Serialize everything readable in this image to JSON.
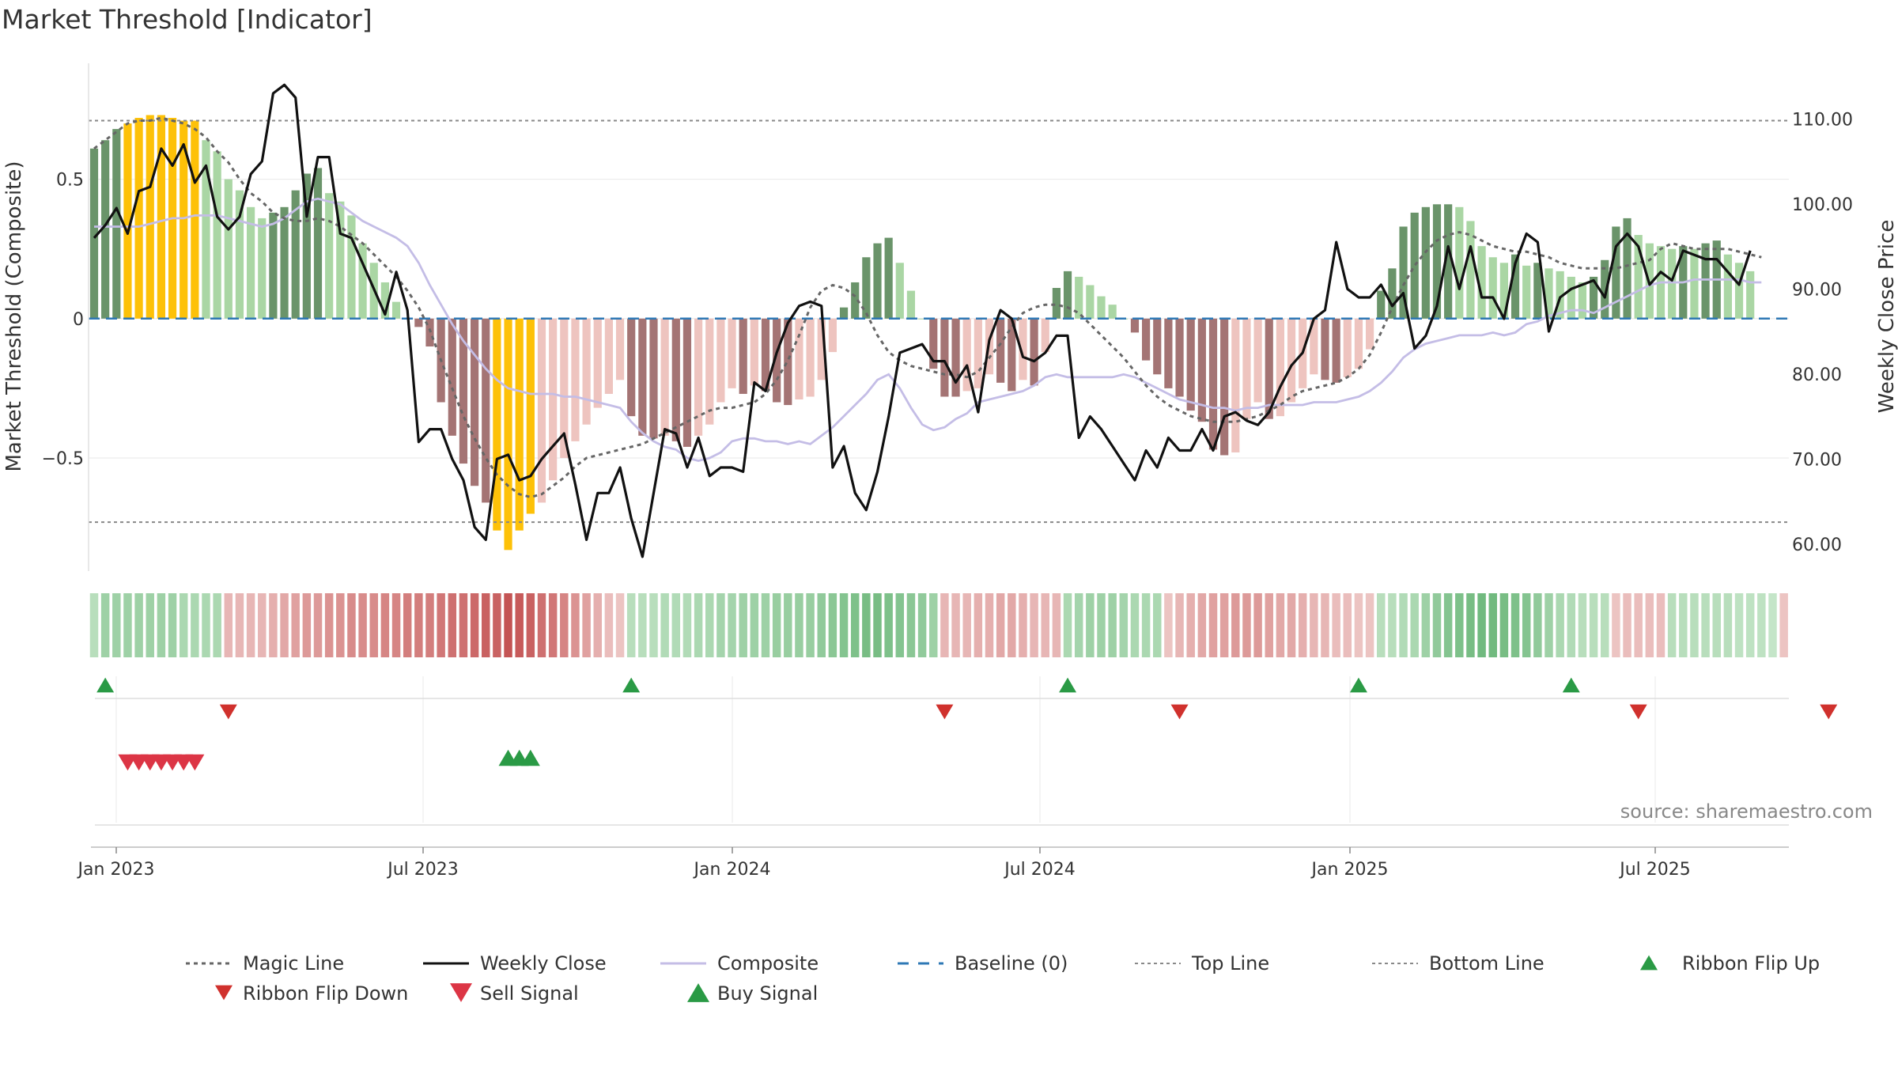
{
  "chart_data": {
    "type": "bar",
    "title": "Market Threshold [Indicator]",
    "ylabel": "Market Threshold (Composite)",
    "y2label": "Weekly Close Price",
    "ylim": [
      -0.9,
      0.93
    ],
    "y2lim": [
      57.0,
      117.0
    ],
    "source": "source: sharemaestro.com",
    "x_ticks": [
      "Jan 2023",
      "Jul 2023",
      "Jan 2024",
      "Jul 2024",
      "Jan 2025",
      "Jul 2025"
    ],
    "y_ticks": [
      {
        "value": 0.5,
        "label": "0.5"
      },
      {
        "value": 0,
        "label": "0"
      },
      {
        "value": -0.5,
        "label": "−0.5"
      }
    ],
    "y2_ticks": [
      {
        "value": 110,
        "label": "110.00"
      },
      {
        "value": 100,
        "label": "100.00"
      },
      {
        "value": 90,
        "label": "90.00"
      },
      {
        "value": 80,
        "label": "80.00"
      },
      {
        "value": 70,
        "label": "70.00"
      },
      {
        "value": 60,
        "label": "60.00"
      }
    ],
    "top_line": 0.71,
    "bottom_line": -0.73,
    "composite_bars": [
      0.61,
      0.64,
      0.68,
      0.7,
      0.72,
      0.73,
      0.73,
      0.72,
      0.71,
      0.71,
      0.64,
      0.6,
      0.5,
      0.46,
      0.4,
      0.36,
      0.38,
      0.4,
      0.46,
      0.52,
      0.54,
      0.45,
      0.42,
      0.37,
      0.27,
      0.2,
      0.13,
      0.06,
      0.0,
      -0.03,
      -0.1,
      -0.3,
      -0.42,
      -0.52,
      -0.6,
      -0.66,
      -0.76,
      -0.83,
      -0.76,
      -0.7,
      -0.66,
      -0.58,
      -0.5,
      -0.44,
      -0.38,
      -0.32,
      -0.27,
      -0.22,
      -0.35,
      -0.42,
      -0.43,
      -0.42,
      -0.44,
      -0.46,
      -0.42,
      -0.38,
      -0.3,
      -0.25,
      -0.27,
      -0.24,
      -0.26,
      -0.3,
      -0.31,
      -0.29,
      -0.28,
      -0.22,
      -0.12,
      0.04,
      0.13,
      0.22,
      0.27,
      0.29,
      0.2,
      0.1,
      0.0,
      -0.18,
      -0.28,
      -0.28,
      -0.26,
      -0.25,
      -0.2,
      -0.23,
      -0.26,
      -0.22,
      -0.24,
      -0.12,
      0.11,
      0.17,
      0.15,
      0.12,
      0.08,
      0.05,
      0.0,
      -0.05,
      -0.15,
      -0.2,
      -0.25,
      -0.28,
      -0.33,
      -0.37,
      -0.47,
      -0.49,
      -0.48,
      -0.36,
      -0.3,
      -0.36,
      -0.35,
      -0.3,
      -0.25,
      -0.2,
      -0.22,
      -0.23,
      -0.21,
      -0.18,
      -0.11,
      0.1,
      0.18,
      0.33,
      0.38,
      0.4,
      0.41,
      0.41,
      0.4,
      0.35,
      0.26,
      0.22,
      0.2,
      0.23,
      0.19,
      0.2,
      0.18,
      0.17,
      0.15,
      0.13,
      0.15,
      0.21,
      0.33,
      0.36,
      0.3,
      0.27,
      0.26,
      0.25,
      0.26,
      0.25,
      0.27,
      0.28,
      0.23,
      0.2,
      0.17
    ],
    "weekly_close": [
      96,
      97.5,
      99.5,
      96.5,
      101.5,
      102,
      106.5,
      104.5,
      107,
      102.5,
      104.5,
      98.5,
      97,
      98.5,
      103.5,
      105,
      113,
      114,
      112.5,
      98.5,
      105.5,
      105.5,
      96.5,
      96,
      93,
      90,
      87,
      92,
      87.5,
      72,
      73.5,
      73.5,
      70,
      67.5,
      62,
      60.5,
      70,
      70.5,
      67.5,
      68,
      70,
      71.5,
      73,
      67,
      60.5,
      66,
      66,
      69,
      63,
      58.5,
      66,
      73.5,
      73,
      69,
      72.5,
      68,
      69,
      69,
      68.5,
      79,
      78,
      82.5,
      86,
      88,
      88.5,
      88,
      69,
      71.5,
      66,
      64,
      68.5,
      75,
      82.5,
      83,
      83.5,
      81.5,
      81.5,
      79,
      81,
      75.5,
      84,
      87.5,
      86.5,
      82,
      81.5,
      82.5,
      84.5,
      84.5,
      72.5,
      75,
      73.5,
      71.5,
      69.5,
      67.5,
      71,
      69,
      72.5,
      71,
      71,
      73.5,
      71,
      75,
      75.5,
      74.5,
      74,
      75.5,
      78.5,
      81,
      82.5,
      86.5,
      87.5,
      95.5,
      90,
      89,
      89,
      90.5,
      88,
      89.5,
      83,
      84.5,
      88,
      95,
      90,
      95,
      89,
      89,
      86.5,
      93,
      96.5,
      95.5,
      85,
      89,
      90,
      90.5,
      91,
      89,
      95,
      96.5,
      95,
      90.5,
      92,
      91,
      94.5,
      94,
      93.5,
      93.5,
      92,
      90.5,
      94.5
    ],
    "magic_line": [
      0.61,
      0.64,
      0.67,
      0.7,
      0.71,
      0.71,
      0.72,
      0.71,
      0.7,
      0.68,
      0.65,
      0.6,
      0.56,
      0.5,
      0.45,
      0.42,
      0.38,
      0.36,
      0.35,
      0.35,
      0.36,
      0.35,
      0.33,
      0.3,
      0.27,
      0.23,
      0.19,
      0.15,
      0.1,
      0.04,
      -0.04,
      -0.15,
      -0.25,
      -0.35,
      -0.43,
      -0.5,
      -0.56,
      -0.6,
      -0.63,
      -0.64,
      -0.63,
      -0.6,
      -0.57,
      -0.53,
      -0.5,
      -0.49,
      -0.48,
      -0.47,
      -0.46,
      -0.45,
      -0.43,
      -0.41,
      -0.39,
      -0.37,
      -0.35,
      -0.33,
      -0.32,
      -0.32,
      -0.31,
      -0.3,
      -0.27,
      -0.22,
      -0.15,
      -0.06,
      0.04,
      0.1,
      0.12,
      0.11,
      0.08,
      0.02,
      -0.06,
      -0.12,
      -0.15,
      -0.17,
      -0.18,
      -0.19,
      -0.2,
      -0.2,
      -0.21,
      -0.19,
      -0.14,
      -0.09,
      -0.03,
      0.02,
      0.04,
      0.05,
      0.05,
      0.04,
      0.02,
      -0.02,
      -0.06,
      -0.1,
      -0.14,
      -0.19,
      -0.24,
      -0.28,
      -0.31,
      -0.33,
      -0.35,
      -0.36,
      -0.37,
      -0.37,
      -0.37,
      -0.36,
      -0.35,
      -0.33,
      -0.31,
      -0.28,
      -0.26,
      -0.25,
      -0.24,
      -0.23,
      -0.21,
      -0.18,
      -0.13,
      -0.05,
      0.04,
      0.12,
      0.19,
      0.24,
      0.28,
      0.3,
      0.31,
      0.3,
      0.28,
      0.26,
      0.25,
      0.24,
      0.24,
      0.23,
      0.22,
      0.2,
      0.19,
      0.18,
      0.18,
      0.18,
      0.18,
      0.19,
      0.2,
      0.21,
      0.25,
      0.27,
      0.26,
      0.25,
      0.25,
      0.25,
      0.25,
      0.24,
      0.23,
      0.22
    ],
    "composite_line": [
      0.33,
      0.33,
      0.33,
      0.33,
      0.33,
      0.34,
      0.35,
      0.36,
      0.36,
      0.37,
      0.37,
      0.37,
      0.36,
      0.35,
      0.34,
      0.33,
      0.34,
      0.36,
      0.39,
      0.42,
      0.43,
      0.42,
      0.41,
      0.38,
      0.35,
      0.33,
      0.31,
      0.29,
      0.26,
      0.2,
      0.12,
      0.05,
      -0.02,
      -0.08,
      -0.13,
      -0.18,
      -0.22,
      -0.25,
      -0.26,
      -0.27,
      -0.27,
      -0.27,
      -0.28,
      -0.28,
      -0.29,
      -0.3,
      -0.31,
      -0.32,
      -0.37,
      -0.41,
      -0.44,
      -0.46,
      -0.47,
      -0.5,
      -0.51,
      -0.5,
      -0.48,
      -0.44,
      -0.43,
      -0.43,
      -0.44,
      -0.44,
      -0.45,
      -0.44,
      -0.45,
      -0.42,
      -0.39,
      -0.35,
      -0.31,
      -0.27,
      -0.22,
      -0.2,
      -0.25,
      -0.32,
      -0.38,
      -0.4,
      -0.39,
      -0.36,
      -0.34,
      -0.3,
      -0.29,
      -0.28,
      -0.27,
      -0.26,
      -0.24,
      -0.21,
      -0.2,
      -0.21,
      -0.21,
      -0.21,
      -0.21,
      -0.21,
      -0.2,
      -0.21,
      -0.23,
      -0.25,
      -0.27,
      -0.29,
      -0.3,
      -0.31,
      -0.32,
      -0.32,
      -0.33,
      -0.32,
      -0.32,
      -0.31,
      -0.31,
      -0.31,
      -0.31,
      -0.3,
      -0.3,
      -0.3,
      -0.29,
      -0.28,
      -0.26,
      -0.23,
      -0.19,
      -0.14,
      -0.11,
      -0.09,
      -0.08,
      -0.07,
      -0.06,
      -0.06,
      -0.06,
      -0.05,
      -0.06,
      -0.05,
      -0.02,
      -0.01,
      0.01,
      0.02,
      0.03,
      0.03,
      0.02,
      0.04,
      0.06,
      0.08,
      0.1,
      0.12,
      0.13,
      0.13,
      0.13,
      0.14,
      0.14,
      0.14,
      0.14,
      0.14,
      0.13,
      0.13
    ],
    "ribbon_scores": [
      0.3,
      0.5,
      0.5,
      0.5,
      0.5,
      0.5,
      0.5,
      0.5,
      0.4,
      0.4,
      0.4,
      0.4,
      -0.3,
      -0.3,
      -0.3,
      -0.3,
      -0.35,
      -0.4,
      -0.45,
      -0.5,
      -0.5,
      -0.55,
      -0.55,
      -0.6,
      -0.6,
      -0.6,
      -0.65,
      -0.65,
      -0.7,
      -0.7,
      -0.7,
      -0.75,
      -0.8,
      -0.8,
      -0.85,
      -0.9,
      -0.9,
      -1.0,
      -0.95,
      -0.9,
      -0.8,
      -0.75,
      -0.65,
      -0.55,
      -0.45,
      -0.35,
      -0.25,
      -0.2,
      0.3,
      0.3,
      0.3,
      0.35,
      0.35,
      0.35,
      0.4,
      0.4,
      0.45,
      0.45,
      0.5,
      0.5,
      0.5,
      0.55,
      0.55,
      0.55,
      0.55,
      0.6,
      0.65,
      0.7,
      0.75,
      0.8,
      0.8,
      0.75,
      0.7,
      0.65,
      0.6,
      0.5,
      -0.3,
      -0.3,
      -0.3,
      -0.35,
      -0.35,
      -0.4,
      -0.4,
      -0.35,
      -0.3,
      -0.3,
      -0.3,
      0.4,
      0.45,
      0.5,
      0.5,
      0.5,
      0.45,
      0.4,
      0.4,
      0.4,
      -0.2,
      -0.3,
      -0.35,
      -0.4,
      -0.45,
      -0.45,
      -0.5,
      -0.5,
      -0.5,
      -0.45,
      -0.4,
      -0.4,
      -0.35,
      -0.3,
      -0.3,
      -0.25,
      -0.25,
      -0.2,
      -0.2,
      0.3,
      0.3,
      0.35,
      0.4,
      0.5,
      0.6,
      0.7,
      0.75,
      0.8,
      0.85,
      0.85,
      0.8,
      0.75,
      0.7,
      0.6,
      0.5,
      0.4,
      0.35,
      0.3,
      0.3,
      0.3,
      -0.2,
      -0.25,
      -0.25,
      -0.25,
      -0.25,
      0.3,
      0.3,
      0.3,
      0.3,
      0.3,
      0.3,
      0.25,
      0.25,
      0.25,
      0.2,
      -0.2
    ],
    "ribbon_flip_up_weeks": [
      1,
      48,
      87,
      113,
      132
    ],
    "ribbon_flip_down_weeks": [
      12,
      76,
      97,
      138,
      155
    ],
    "sell_signal_weeks": [
      3,
      4,
      5,
      6,
      7,
      8,
      9
    ],
    "buy_signal_weeks": [
      37,
      38,
      39
    ],
    "bar_colors": {
      "green_strong": "#6a946a",
      "green_light": "#aad6a4",
      "red_strong": "#a47474",
      "red_light": "#eec4bf",
      "extreme": "#fdc108"
    },
    "line_colors": {
      "magic": "#666666",
      "close": "#111111",
      "composite": "#c4bde6",
      "baseline": "#2e78b5",
      "threshold": "#888888",
      "flip_up": "#2a9a45",
      "flip_down": "#d0312d",
      "sell": "#dc3545",
      "buy": "#2a9a45"
    },
    "legend": [
      {
        "label": "Magic Line",
        "icon": "dotted-line"
      },
      {
        "label": "Weekly Close",
        "icon": "solid-line"
      },
      {
        "label": "Composite",
        "icon": "lavender-line"
      },
      {
        "label": "Baseline (0)",
        "icon": "dashed-line"
      },
      {
        "label": "Top Line",
        "icon": "fine-dotted-line"
      },
      {
        "label": "Bottom Line",
        "icon": "fine-dotted-line"
      },
      {
        "label": "Ribbon Flip Up",
        "icon": "triangle-up"
      },
      {
        "label": "Ribbon Flip Down",
        "icon": "triangle-down"
      },
      {
        "label": "Sell Signal",
        "icon": "triangle-down"
      },
      {
        "label": "Buy Signal",
        "icon": "triangle-up"
      }
    ]
  }
}
